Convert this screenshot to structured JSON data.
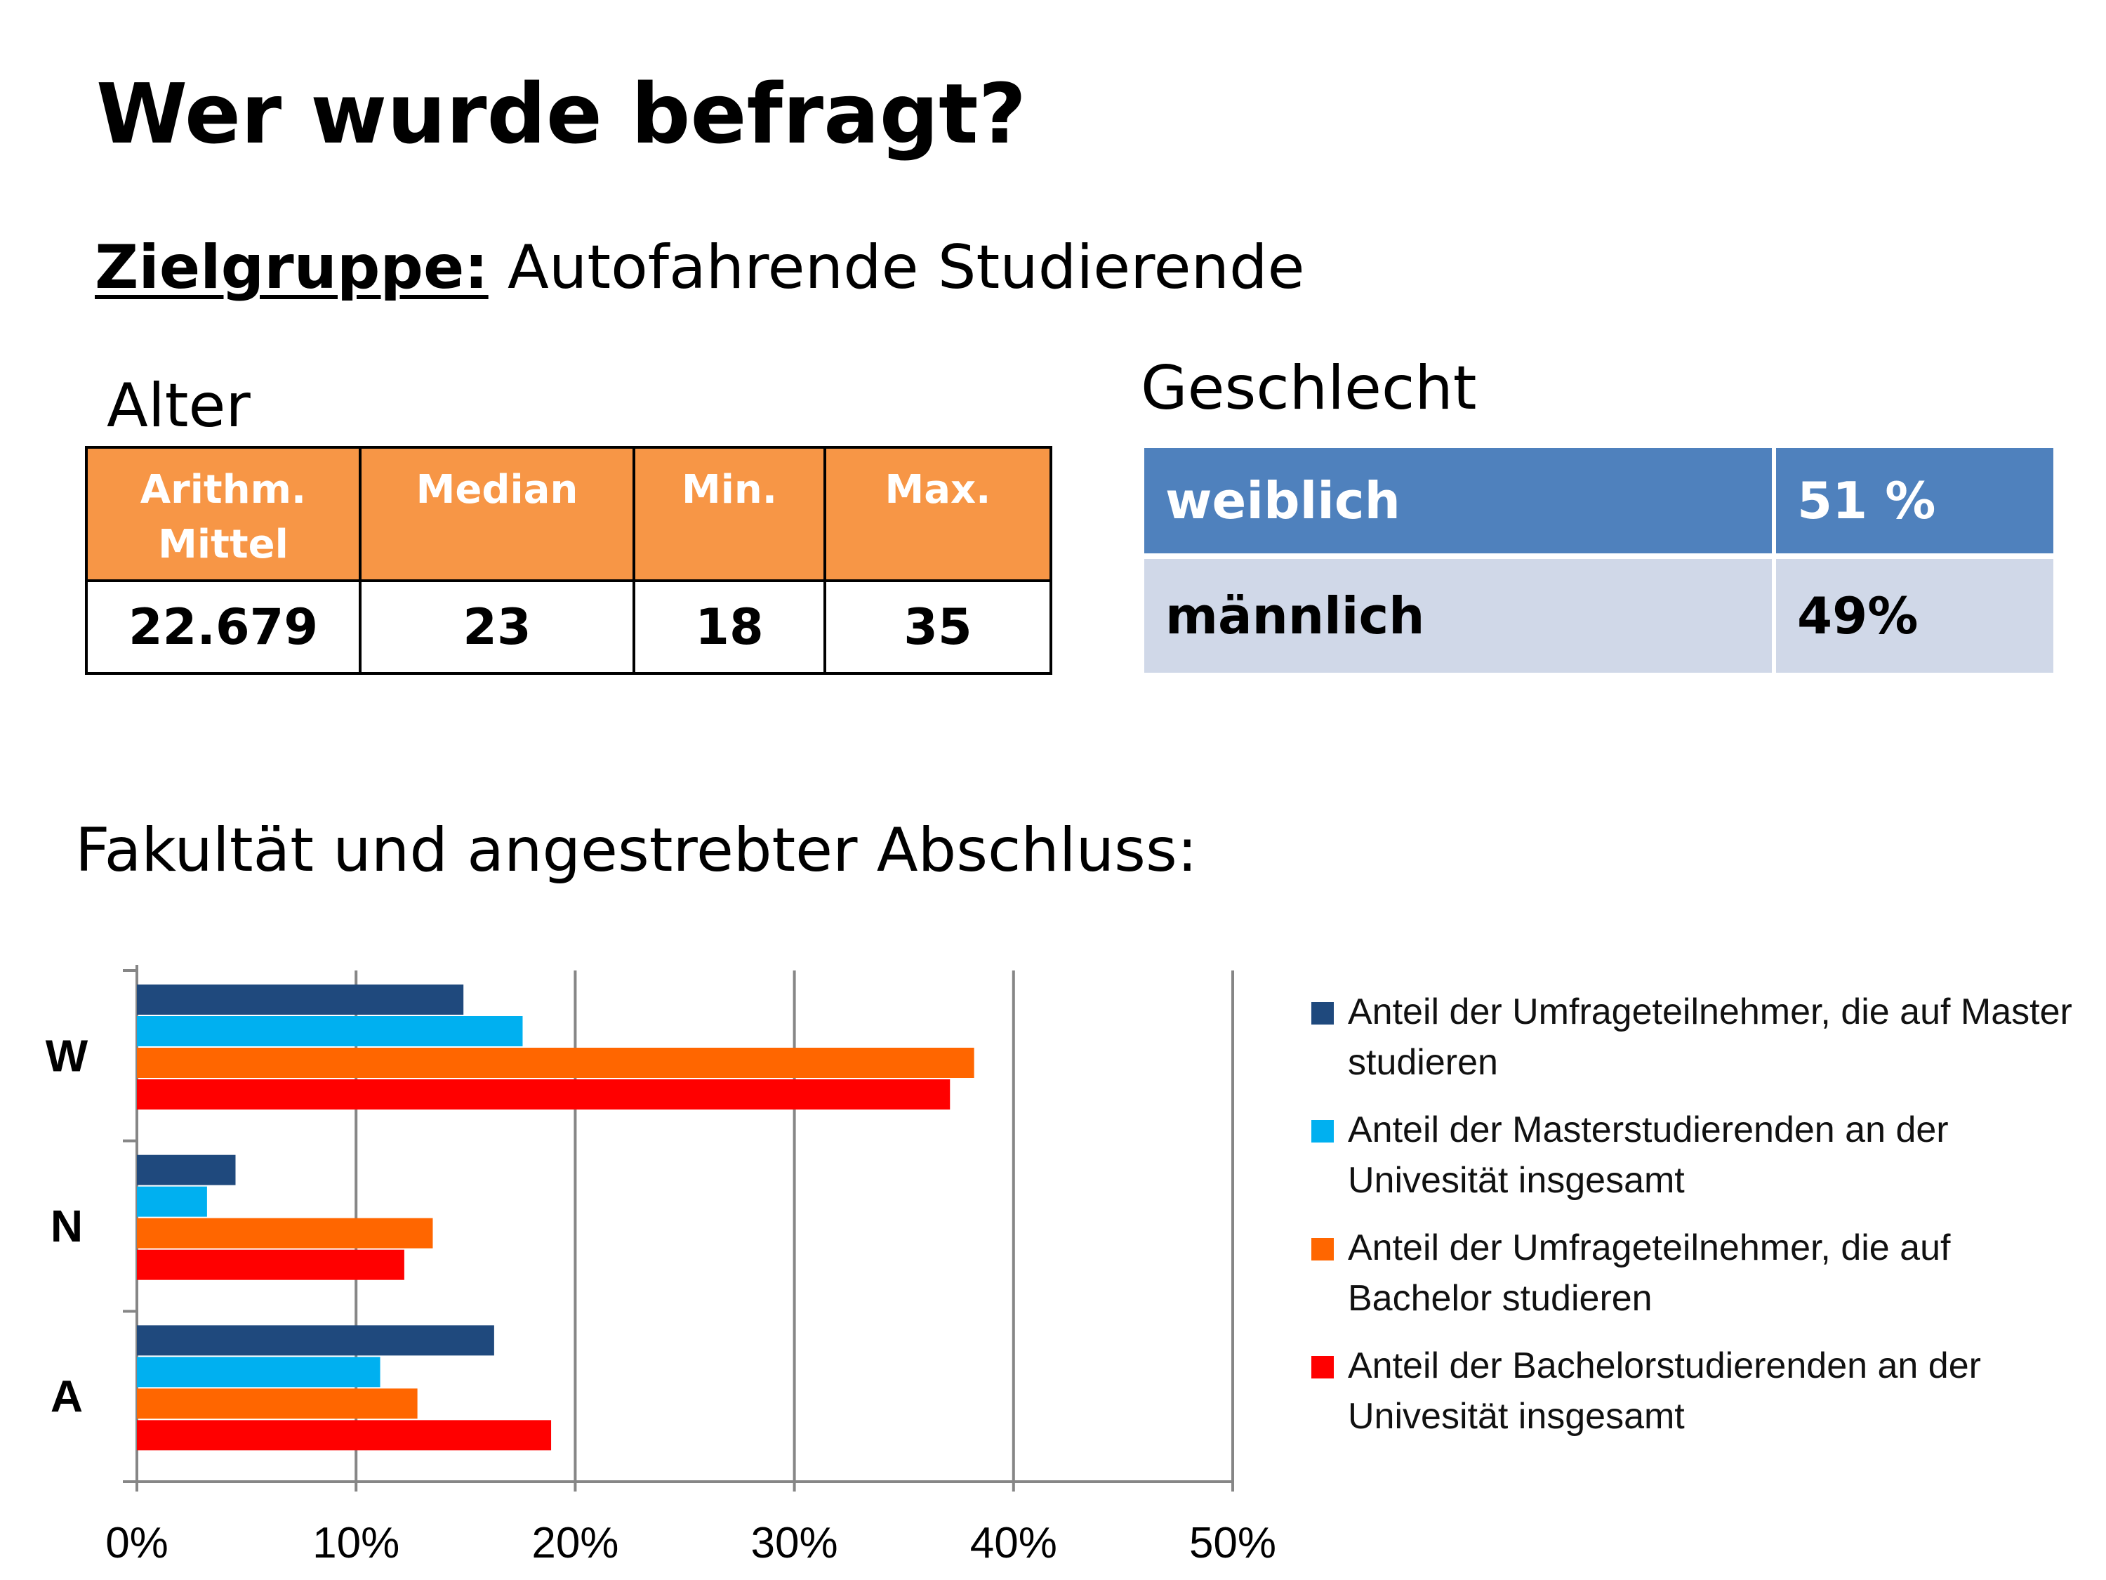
{
  "page": {
    "title": "Wer wurde befragt?",
    "zielgruppe_label": "Zielgruppe:",
    "zielgruppe_value": "Autofahrende Studierende"
  },
  "alter": {
    "heading": "Alter",
    "headers": [
      "Arithm. Mittel",
      "Median",
      "Min.",
      "Max."
    ],
    "values": [
      "22.679",
      "23",
      "18",
      "35"
    ],
    "header_color": "#f79646"
  },
  "geschlecht": {
    "heading": "Geschlecht",
    "rows": [
      {
        "label": "weiblich",
        "value": "51 %"
      },
      {
        "label": "männlich",
        "value": "49%"
      }
    ],
    "colors": {
      "row1": "#4f81bd",
      "row2": "#d0d8e8"
    }
  },
  "faculty": {
    "heading": "Fakultät und angestrebter Abschluss:"
  },
  "chart_data": {
    "type": "bar",
    "orientation": "horizontal",
    "categories": [
      "W",
      "N",
      "A"
    ],
    "series": [
      {
        "name": "Anteil der Umfrageteilnehmer, die auf Master studieren",
        "color": "#1f497d",
        "values": [
          14.9,
          4.5,
          16.3
        ]
      },
      {
        "name": "Anteil der Masterstudierenden an der Univesität insgesamt",
        "color": "#00b0f0",
        "values": [
          17.6,
          3.2,
          11.1
        ]
      },
      {
        "name": "Anteil der Umfrageteilnehmer, die auf Bachelor studieren",
        "color": "#ff6600",
        "values": [
          38.2,
          13.5,
          12.8
        ]
      },
      {
        "name": "Anteil der Bachelorstudierenden an der Univesität insgesamt",
        "color": "#ff0000",
        "values": [
          37.1,
          12.2,
          18.9
        ]
      }
    ],
    "x_ticks": [
      "0%",
      "10%",
      "20%",
      "30%",
      "40%",
      "50%"
    ],
    "xlim": [
      0,
      50
    ],
    "grid": true,
    "legend_position": "right"
  }
}
